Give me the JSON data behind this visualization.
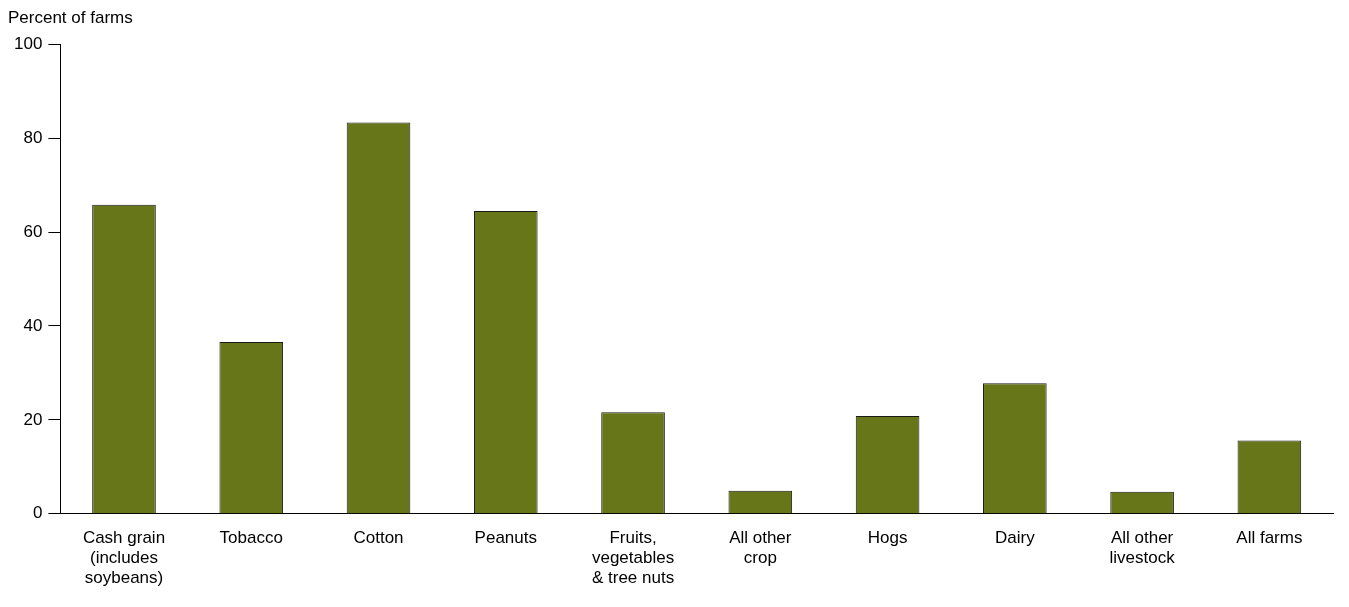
{
  "chart_data": {
    "type": "bar",
    "ylabel": "Percent of farms",
    "categories": [
      "Cash grain\n(includes\nsoybeans)",
      "Tobacco",
      "Cotton",
      "Peanuts",
      "Fruits,\nvegetables\n& tree nuts",
      "All other\ncrop",
      "Hogs",
      "Dairy",
      "All other\nlivestock",
      "All farms"
    ],
    "values": [
      65.8,
      36.6,
      83.3,
      64.5,
      21.6,
      4.9,
      20.8,
      27.8,
      4.7,
      15.6
    ],
    "color": "#68761a",
    "ylim": [
      0,
      100
    ],
    "yticks": [
      0,
      20,
      40,
      60,
      80,
      100
    ],
    "grid": false,
    "legend": false
  }
}
